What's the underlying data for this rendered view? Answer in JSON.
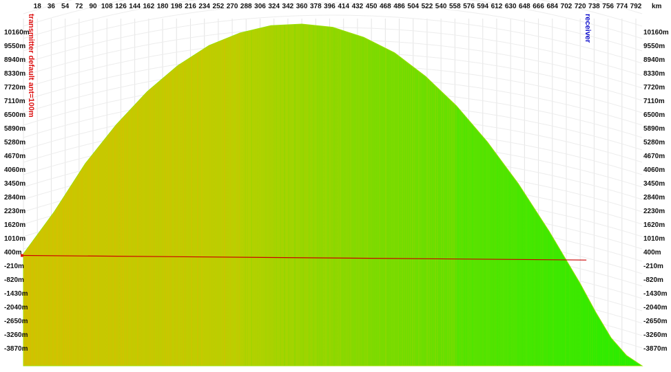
{
  "chart_data": {
    "type": "area",
    "title": "",
    "xlabel": "",
    "ylabel": "",
    "x_unit": "km",
    "x_ticks": [
      18,
      36,
      54,
      72,
      90,
      108,
      126,
      144,
      162,
      180,
      198,
      216,
      234,
      252,
      270,
      288,
      306,
      324,
      342,
      360,
      378,
      396,
      414,
      432,
      450,
      468,
      486,
      504,
      522,
      540,
      558,
      576,
      594,
      612,
      630,
      648,
      666,
      684,
      702,
      720,
      738,
      756,
      774,
      792
    ],
    "y_ticks": [
      "10160m",
      "9550m",
      "8940m",
      "8330m",
      "7720m",
      "7110m",
      "6500m",
      "5890m",
      "5280m",
      "4670m",
      "4060m",
      "3450m",
      "2840m",
      "2230m",
      "1620m",
      "1010m",
      "400m",
      "-210m",
      "-820m",
      "-1430m",
      "-2040m",
      "-2650m",
      "-3260m",
      "-3870m"
    ],
    "xlim": [
      0,
      800
    ],
    "ylim": [
      -4500,
      10700
    ],
    "grid": true,
    "terrain_profile": {
      "x": [
        0,
        40,
        80,
        120,
        160,
        200,
        240,
        280,
        320,
        360,
        400,
        440,
        480,
        520,
        560,
        600,
        640,
        680,
        720,
        740,
        760,
        780,
        800
      ],
      "y": [
        400,
        2250,
        4350,
        6050,
        7500,
        8650,
        9520,
        10070,
        10390,
        10460,
        10320,
        9880,
        9200,
        8170,
        6880,
        5300,
        3470,
        1380,
        -900,
        -2150,
        -3280,
        -4050,
        -4500
      ]
    },
    "signal_line": {
      "x": [
        0,
        728
      ],
      "y": [
        330,
        130
      ]
    },
    "colors": {
      "terrain_low": "#d4c000",
      "terrain_mid": "#7fd400",
      "terrain_high": "#2ee800",
      "signal_line": "#cc0000",
      "transmitter": "#dd1111",
      "receiver": "#1111cc"
    },
    "transmitter_label": "transmitter default ant=100m",
    "receiver_label": "receiver"
  }
}
